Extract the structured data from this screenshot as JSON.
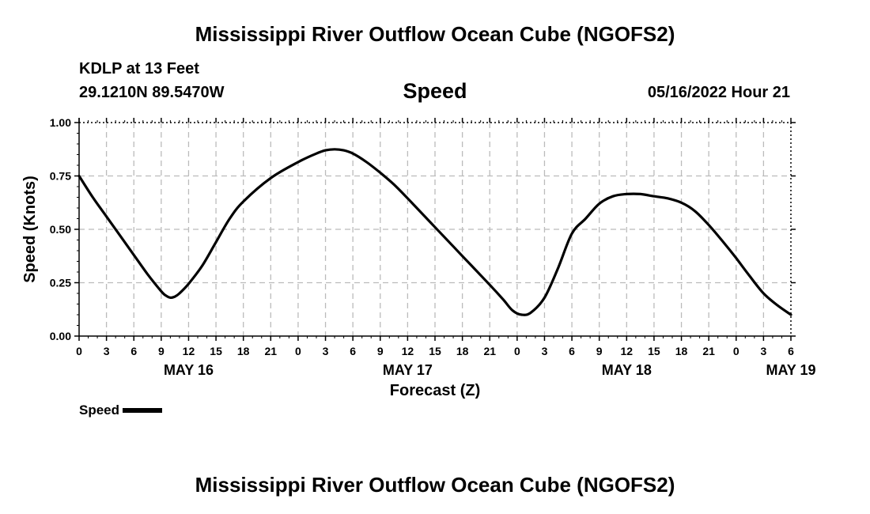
{
  "header": {
    "title": "Mississippi River Outflow Ocean Cube (NGOFS2)",
    "station": "KDLP at 13 Feet",
    "coords": "29.1210N  89.5470W",
    "datetime": "05/16/2022 Hour 21"
  },
  "footer": {
    "title": "Mississippi River Outflow Ocean Cube (NGOFS2)"
  },
  "legend": {
    "label": "Speed"
  },
  "chart_data": {
    "type": "line",
    "title": "Speed",
    "xlabel": "Forecast (Z)",
    "ylabel": "Speed (Knots)",
    "ylim": [
      0,
      1
    ],
    "xlim": [
      0,
      78
    ],
    "x_unit": "hours from 0Z May 16",
    "yticks": [
      "0.00",
      "0.25",
      "0.50",
      "0.75",
      "1.00"
    ],
    "xtick_labels": [
      "0",
      "3",
      "6",
      "9",
      "12",
      "15",
      "18",
      "21",
      "0",
      "3",
      "6",
      "9",
      "12",
      "15",
      "18",
      "21",
      "0",
      "3",
      "6",
      "9",
      "12",
      "15",
      "18",
      "21",
      "0",
      "3",
      "6"
    ],
    "date_labels": [
      {
        "label": "MAY 16",
        "hour": 12
      },
      {
        "label": "MAY 17",
        "hour": 36
      },
      {
        "label": "MAY 18",
        "hour": 60
      },
      {
        "label": "MAY 19",
        "hour": 78
      }
    ],
    "grid": true,
    "series": [
      {
        "name": "Speed",
        "color": "#000000",
        "x": [
          0,
          1.5,
          3,
          4.5,
          6,
          7.5,
          9,
          9.5,
          10,
          10.5,
          11,
          12,
          13.5,
          15,
          16.5,
          18,
          21,
          24,
          26,
          27,
          28,
          29,
          30,
          31.5,
          33,
          34.5,
          36,
          39,
          42,
          45,
          46.5,
          47.5,
          48.5,
          49.5,
          51,
          52.5,
          54,
          55.5,
          57,
          58.5,
          60,
          61.5,
          63,
          64.5,
          66,
          67.5,
          69,
          70.5,
          72,
          73.5,
          75,
          76.5,
          78
        ],
        "y": [
          0.75,
          0.65,
          0.56,
          0.47,
          0.38,
          0.29,
          0.21,
          0.19,
          0.18,
          0.185,
          0.2,
          0.245,
          0.33,
          0.44,
          0.55,
          0.63,
          0.74,
          0.815,
          0.855,
          0.87,
          0.875,
          0.87,
          0.855,
          0.815,
          0.765,
          0.71,
          0.645,
          0.51,
          0.375,
          0.24,
          0.17,
          0.12,
          0.1,
          0.11,
          0.18,
          0.32,
          0.48,
          0.55,
          0.62,
          0.655,
          0.665,
          0.665,
          0.655,
          0.645,
          0.625,
          0.585,
          0.52,
          0.445,
          0.365,
          0.28,
          0.2,
          0.145,
          0.1
        ]
      }
    ]
  }
}
